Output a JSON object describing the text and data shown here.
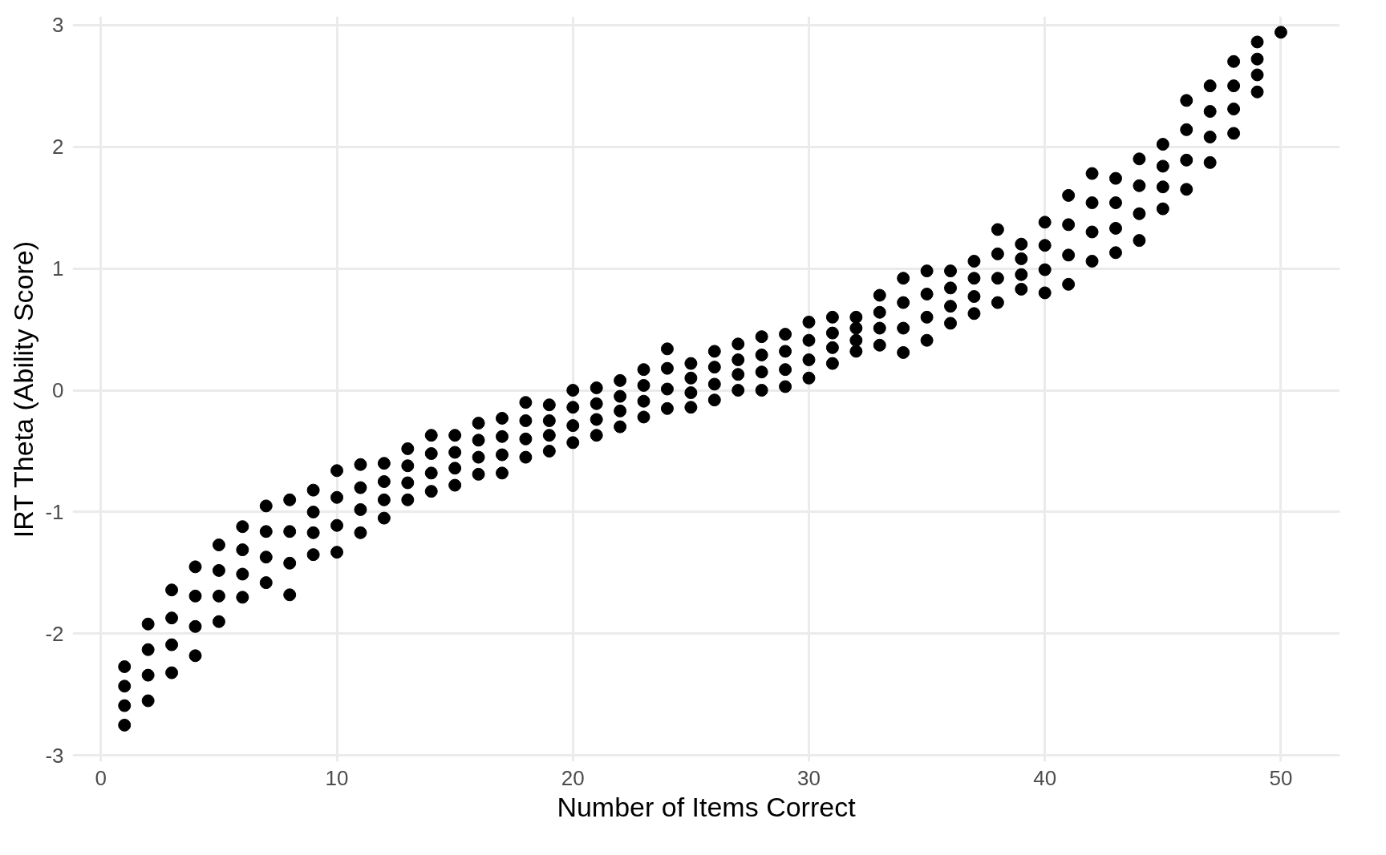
{
  "chart_data": {
    "type": "scatter",
    "xlabel": "Number of Items Correct",
    "ylabel": "IRT Theta (Ability Score)",
    "xlim": [
      -1.2,
      52.5
    ],
    "ylim": [
      -3.05,
      3.07
    ],
    "xticks": [
      0,
      10,
      20,
      30,
      40,
      50
    ],
    "yticks": [
      -3,
      -2,
      -1,
      0,
      1,
      2,
      3
    ],
    "grid": true,
    "marker": "circle",
    "series": [
      {
        "color": "#000000",
        "x": [
          1,
          1,
          1,
          1,
          2,
          2,
          2,
          2,
          3,
          3,
          3,
          3,
          4,
          4,
          4,
          4,
          5,
          5,
          5,
          5,
          6,
          6,
          6,
          6,
          7,
          7,
          7,
          7,
          8,
          8,
          8,
          8,
          9,
          9,
          9,
          9,
          10,
          10,
          10,
          10,
          11,
          11,
          11,
          11,
          12,
          12,
          12,
          12,
          13,
          13,
          13,
          13,
          14,
          14,
          14,
          14,
          15,
          15,
          15,
          15,
          16,
          16,
          16,
          16,
          17,
          17,
          17,
          17,
          18,
          18,
          18,
          18,
          19,
          19,
          19,
          19,
          20,
          20,
          20,
          20,
          21,
          21,
          21,
          21,
          22,
          22,
          22,
          22,
          23,
          23,
          23,
          23,
          24,
          24,
          24,
          24,
          25,
          25,
          25,
          25,
          26,
          26,
          26,
          26,
          27,
          27,
          27,
          27,
          28,
          28,
          28,
          28,
          29,
          29,
          29,
          29,
          30,
          30,
          30,
          30,
          31,
          31,
          31,
          31,
          32,
          32,
          32,
          32,
          33,
          33,
          33,
          33,
          34,
          34,
          34,
          34,
          35,
          35,
          35,
          35,
          36,
          36,
          36,
          36,
          37,
          37,
          37,
          37,
          38,
          38,
          38,
          38,
          39,
          39,
          39,
          39,
          40,
          40,
          40,
          40,
          41,
          41,
          41,
          41,
          42,
          42,
          42,
          42,
          43,
          43,
          43,
          43,
          44,
          44,
          44,
          44,
          45,
          45,
          45,
          45,
          46,
          46,
          46,
          46,
          47,
          47,
          47,
          47,
          48,
          48,
          48,
          48,
          49,
          49,
          49,
          49,
          50
        ],
        "values": [
          -2.75,
          -2.59,
          -2.43,
          -2.27,
          -2.55,
          -2.34,
          -2.13,
          -1.92,
          -2.32,
          -2.09,
          -1.87,
          -1.64,
          -2.18,
          -1.94,
          -1.69,
          -1.45,
          -1.9,
          -1.69,
          -1.48,
          -1.27,
          -1.7,
          -1.51,
          -1.31,
          -1.12,
          -1.58,
          -1.37,
          -1.16,
          -0.95,
          -1.68,
          -1.42,
          -1.16,
          -0.9,
          -1.35,
          -1.17,
          -1.0,
          -0.82,
          -1.33,
          -1.11,
          -0.88,
          -0.66,
          -1.17,
          -0.98,
          -0.8,
          -0.61,
          -1.05,
          -0.9,
          -0.75,
          -0.6,
          -0.9,
          -0.76,
          -0.62,
          -0.48,
          -0.83,
          -0.68,
          -0.52,
          -0.37,
          -0.78,
          -0.64,
          -0.51,
          -0.37,
          -0.69,
          -0.55,
          -0.41,
          -0.27,
          -0.68,
          -0.53,
          -0.38,
          -0.23,
          -0.55,
          -0.4,
          -0.25,
          -0.1,
          -0.5,
          -0.37,
          -0.25,
          -0.12,
          -0.43,
          -0.29,
          -0.14,
          0.0,
          -0.37,
          -0.24,
          -0.11,
          0.02,
          -0.3,
          -0.17,
          -0.05,
          0.08,
          -0.22,
          -0.09,
          0.04,
          0.17,
          -0.15,
          0.01,
          0.18,
          0.34,
          -0.14,
          -0.02,
          0.1,
          0.22,
          -0.08,
          0.05,
          0.19,
          0.32,
          0.0,
          0.13,
          0.25,
          0.38,
          0.0,
          0.15,
          0.29,
          0.44,
          0.03,
          0.17,
          0.32,
          0.46,
          0.1,
          0.25,
          0.41,
          0.56,
          0.22,
          0.35,
          0.47,
          0.6,
          0.32,
          0.41,
          0.51,
          0.6,
          0.37,
          0.51,
          0.64,
          0.78,
          0.31,
          0.51,
          0.72,
          0.92,
          0.41,
          0.6,
          0.79,
          0.98,
          0.55,
          0.69,
          0.84,
          0.98,
          0.63,
          0.77,
          0.92,
          1.06,
          0.72,
          0.92,
          1.12,
          1.32,
          0.83,
          0.95,
          1.08,
          1.2,
          0.8,
          0.99,
          1.19,
          1.38,
          0.87,
          1.11,
          1.36,
          1.6,
          1.06,
          1.3,
          1.54,
          1.78,
          1.13,
          1.33,
          1.54,
          1.74,
          1.23,
          1.45,
          1.68,
          1.9,
          1.49,
          1.67,
          1.84,
          2.02,
          1.65,
          1.89,
          2.14,
          2.38,
          1.87,
          2.08,
          2.29,
          2.5,
          2.11,
          2.31,
          2.5,
          2.7,
          2.45,
          2.59,
          2.72,
          2.86,
          2.94
        ]
      }
    ]
  }
}
